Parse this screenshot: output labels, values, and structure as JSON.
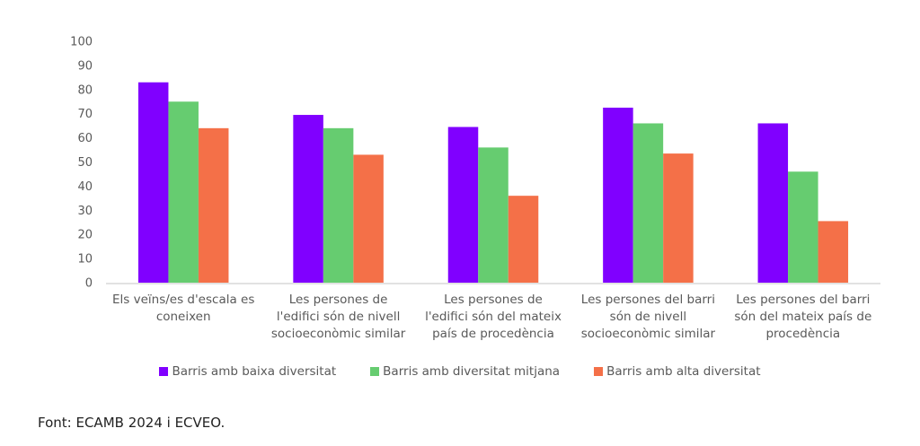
{
  "chart_data": {
    "type": "bar",
    "title": "",
    "xlabel": "",
    "ylabel": "",
    "ylim": [
      0,
      100
    ],
    "yticks": [
      0,
      10,
      20,
      30,
      40,
      50,
      60,
      70,
      80,
      90,
      100
    ],
    "grid": false,
    "legend_position": "bottom",
    "categories": [
      [
        "Els veïns/es d'escala es",
        "coneixen"
      ],
      [
        "Les persones de",
        "l'edifici són de nivell",
        "socioeconòmic similar"
      ],
      [
        "Les persones de",
        "l'edifici són del mateix",
        "país de procedència"
      ],
      [
        "Les persones del barri",
        "són de nivell",
        "socioeconòmic similar"
      ],
      [
        "Les persones del barri",
        "són del mateix país de",
        "procedència"
      ]
    ],
    "series": [
      {
        "name": "Barris amb baixa diversitat",
        "color": "#8000FF",
        "values": [
          83,
          69.5,
          64.5,
          72.5,
          66
        ]
      },
      {
        "name": "Barris amb diversitat mitjana",
        "color": "#66CC70",
        "values": [
          75,
          64,
          56,
          66,
          46
        ]
      },
      {
        "name": "Barris amb alta diversitat",
        "color": "#F47048",
        "values": [
          64,
          53,
          36,
          53.5,
          25.5
        ]
      }
    ]
  },
  "source": "Font: ECAMB 2024 i ECVEO."
}
